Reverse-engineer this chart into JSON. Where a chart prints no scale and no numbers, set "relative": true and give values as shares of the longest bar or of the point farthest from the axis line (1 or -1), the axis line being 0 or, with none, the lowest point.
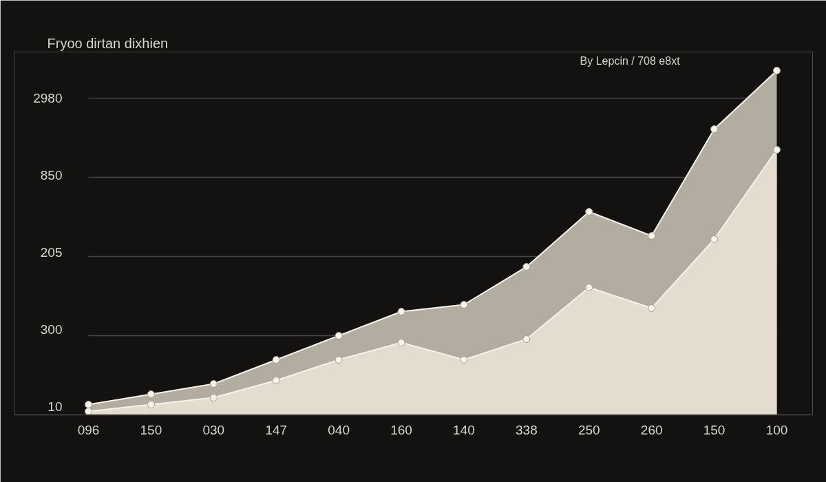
{
  "chart_data": {
    "type": "area",
    "relative": true,
    "title": "Fryoo dirtan dixhien",
    "annotations": [
      "By Lepcin / 708 e8xt",
      "2980",
      "850",
      "205",
      "300",
      "10"
    ],
    "categories": [
      "096",
      "150",
      "030",
      "147",
      "040",
      "160",
      "140",
      "338",
      "250",
      "260",
      "150",
      "100"
    ],
    "series": [
      {
        "color": "#b3aca0",
        "values": [
          0.03,
          0.06,
          0.09,
          0.16,
          0.23,
          0.3,
          0.32,
          0.43,
          0.59,
          0.52,
          0.83,
          1
        ]
      },
      {
        "color": "#e3dccf",
        "values": [
          0.01,
          0.03,
          0.05,
          0.1,
          0.16,
          0.21,
          0.16,
          0.22,
          0.37,
          0.31,
          0.51,
          0.77
        ]
      }
    ],
    "ref_lines": [
      {
        "axis": "y",
        "value": 0.23,
        "color": "#4a4845"
      },
      {
        "axis": "y",
        "value": 0.46,
        "color": "#4a4845"
      },
      {
        "axis": "y",
        "value": 0.69,
        "color": "#4a4845"
      },
      {
        "axis": "y",
        "value": 0.92,
        "color": "#4a4845"
      }
    ],
    "marker": "circle"
  }
}
